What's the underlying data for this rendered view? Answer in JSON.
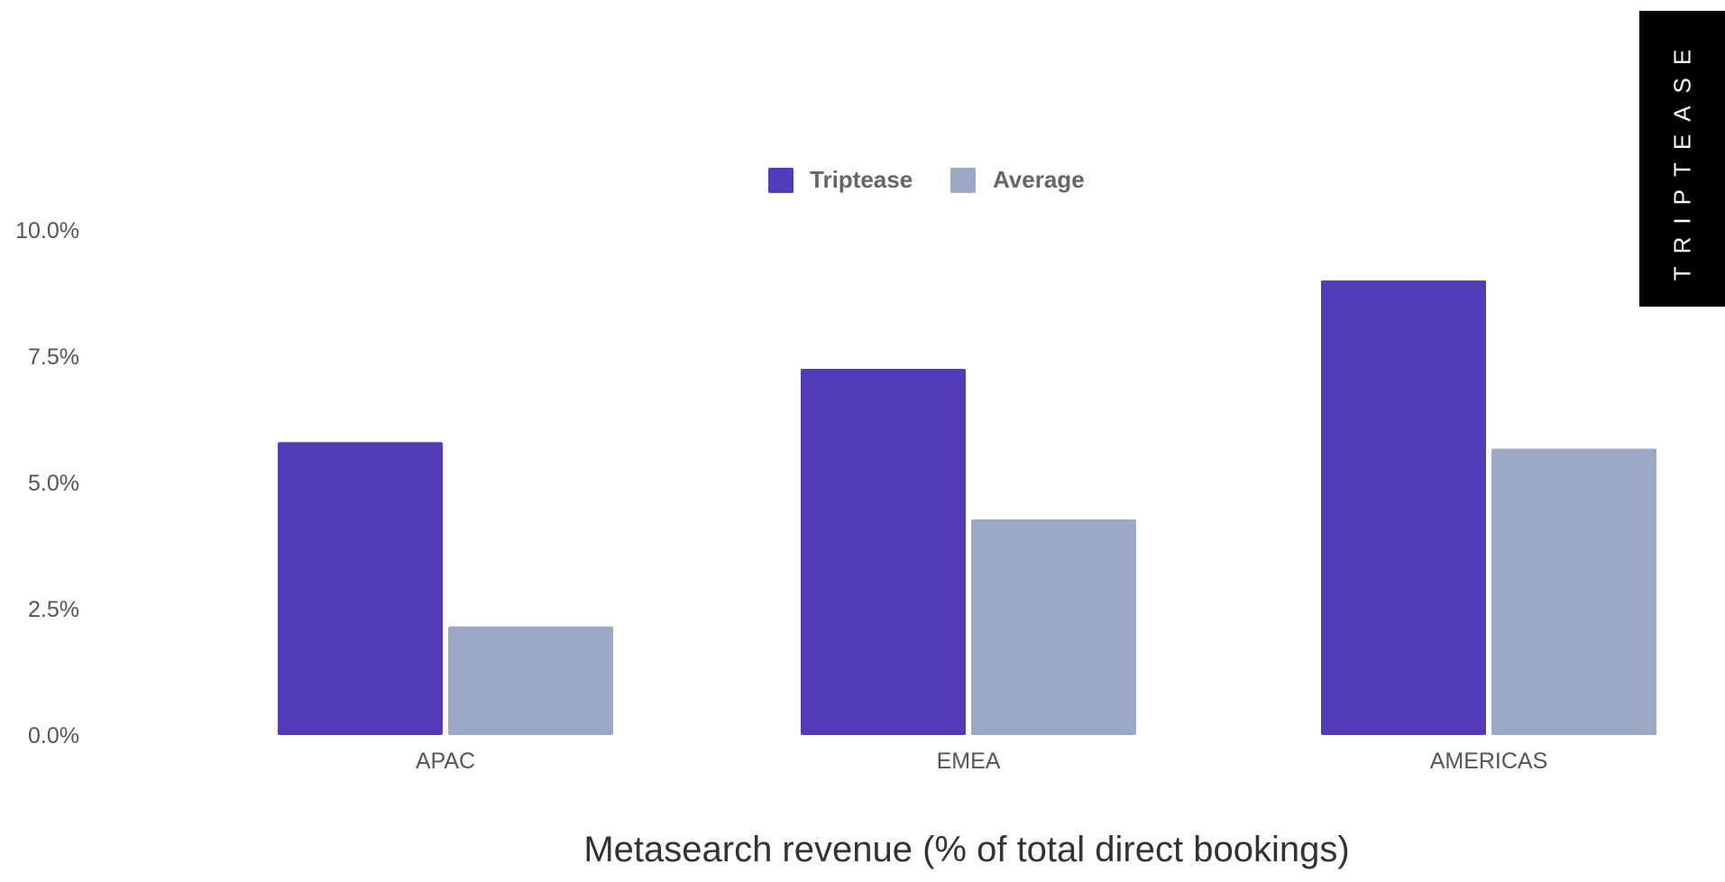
{
  "brand": {
    "logo_text": "TRIPTEASE"
  },
  "colors": {
    "triptease": "#533bba",
    "average": "#9ba9c6"
  },
  "chart_data": {
    "type": "bar",
    "categories": [
      "APAC",
      "EMEA",
      "AMERICAS"
    ],
    "series": [
      {
        "name": "Triptease",
        "values": [
          5.8,
          7.25,
          9.0
        ]
      },
      {
        "name": "Average",
        "values": [
          2.15,
          4.27,
          5.67
        ]
      }
    ],
    "title": "",
    "xlabel": "Metasearch revenue (% of total direct bookings)",
    "ylabel": "",
    "ylim": [
      0,
      10
    ],
    "yticks": [
      "0.0%",
      "2.5%",
      "5.0%",
      "7.5%",
      "10.0%"
    ],
    "ytick_values": [
      0,
      2.5,
      5,
      7.5,
      10
    ],
    "grid": false,
    "legend_position": "top-center"
  }
}
